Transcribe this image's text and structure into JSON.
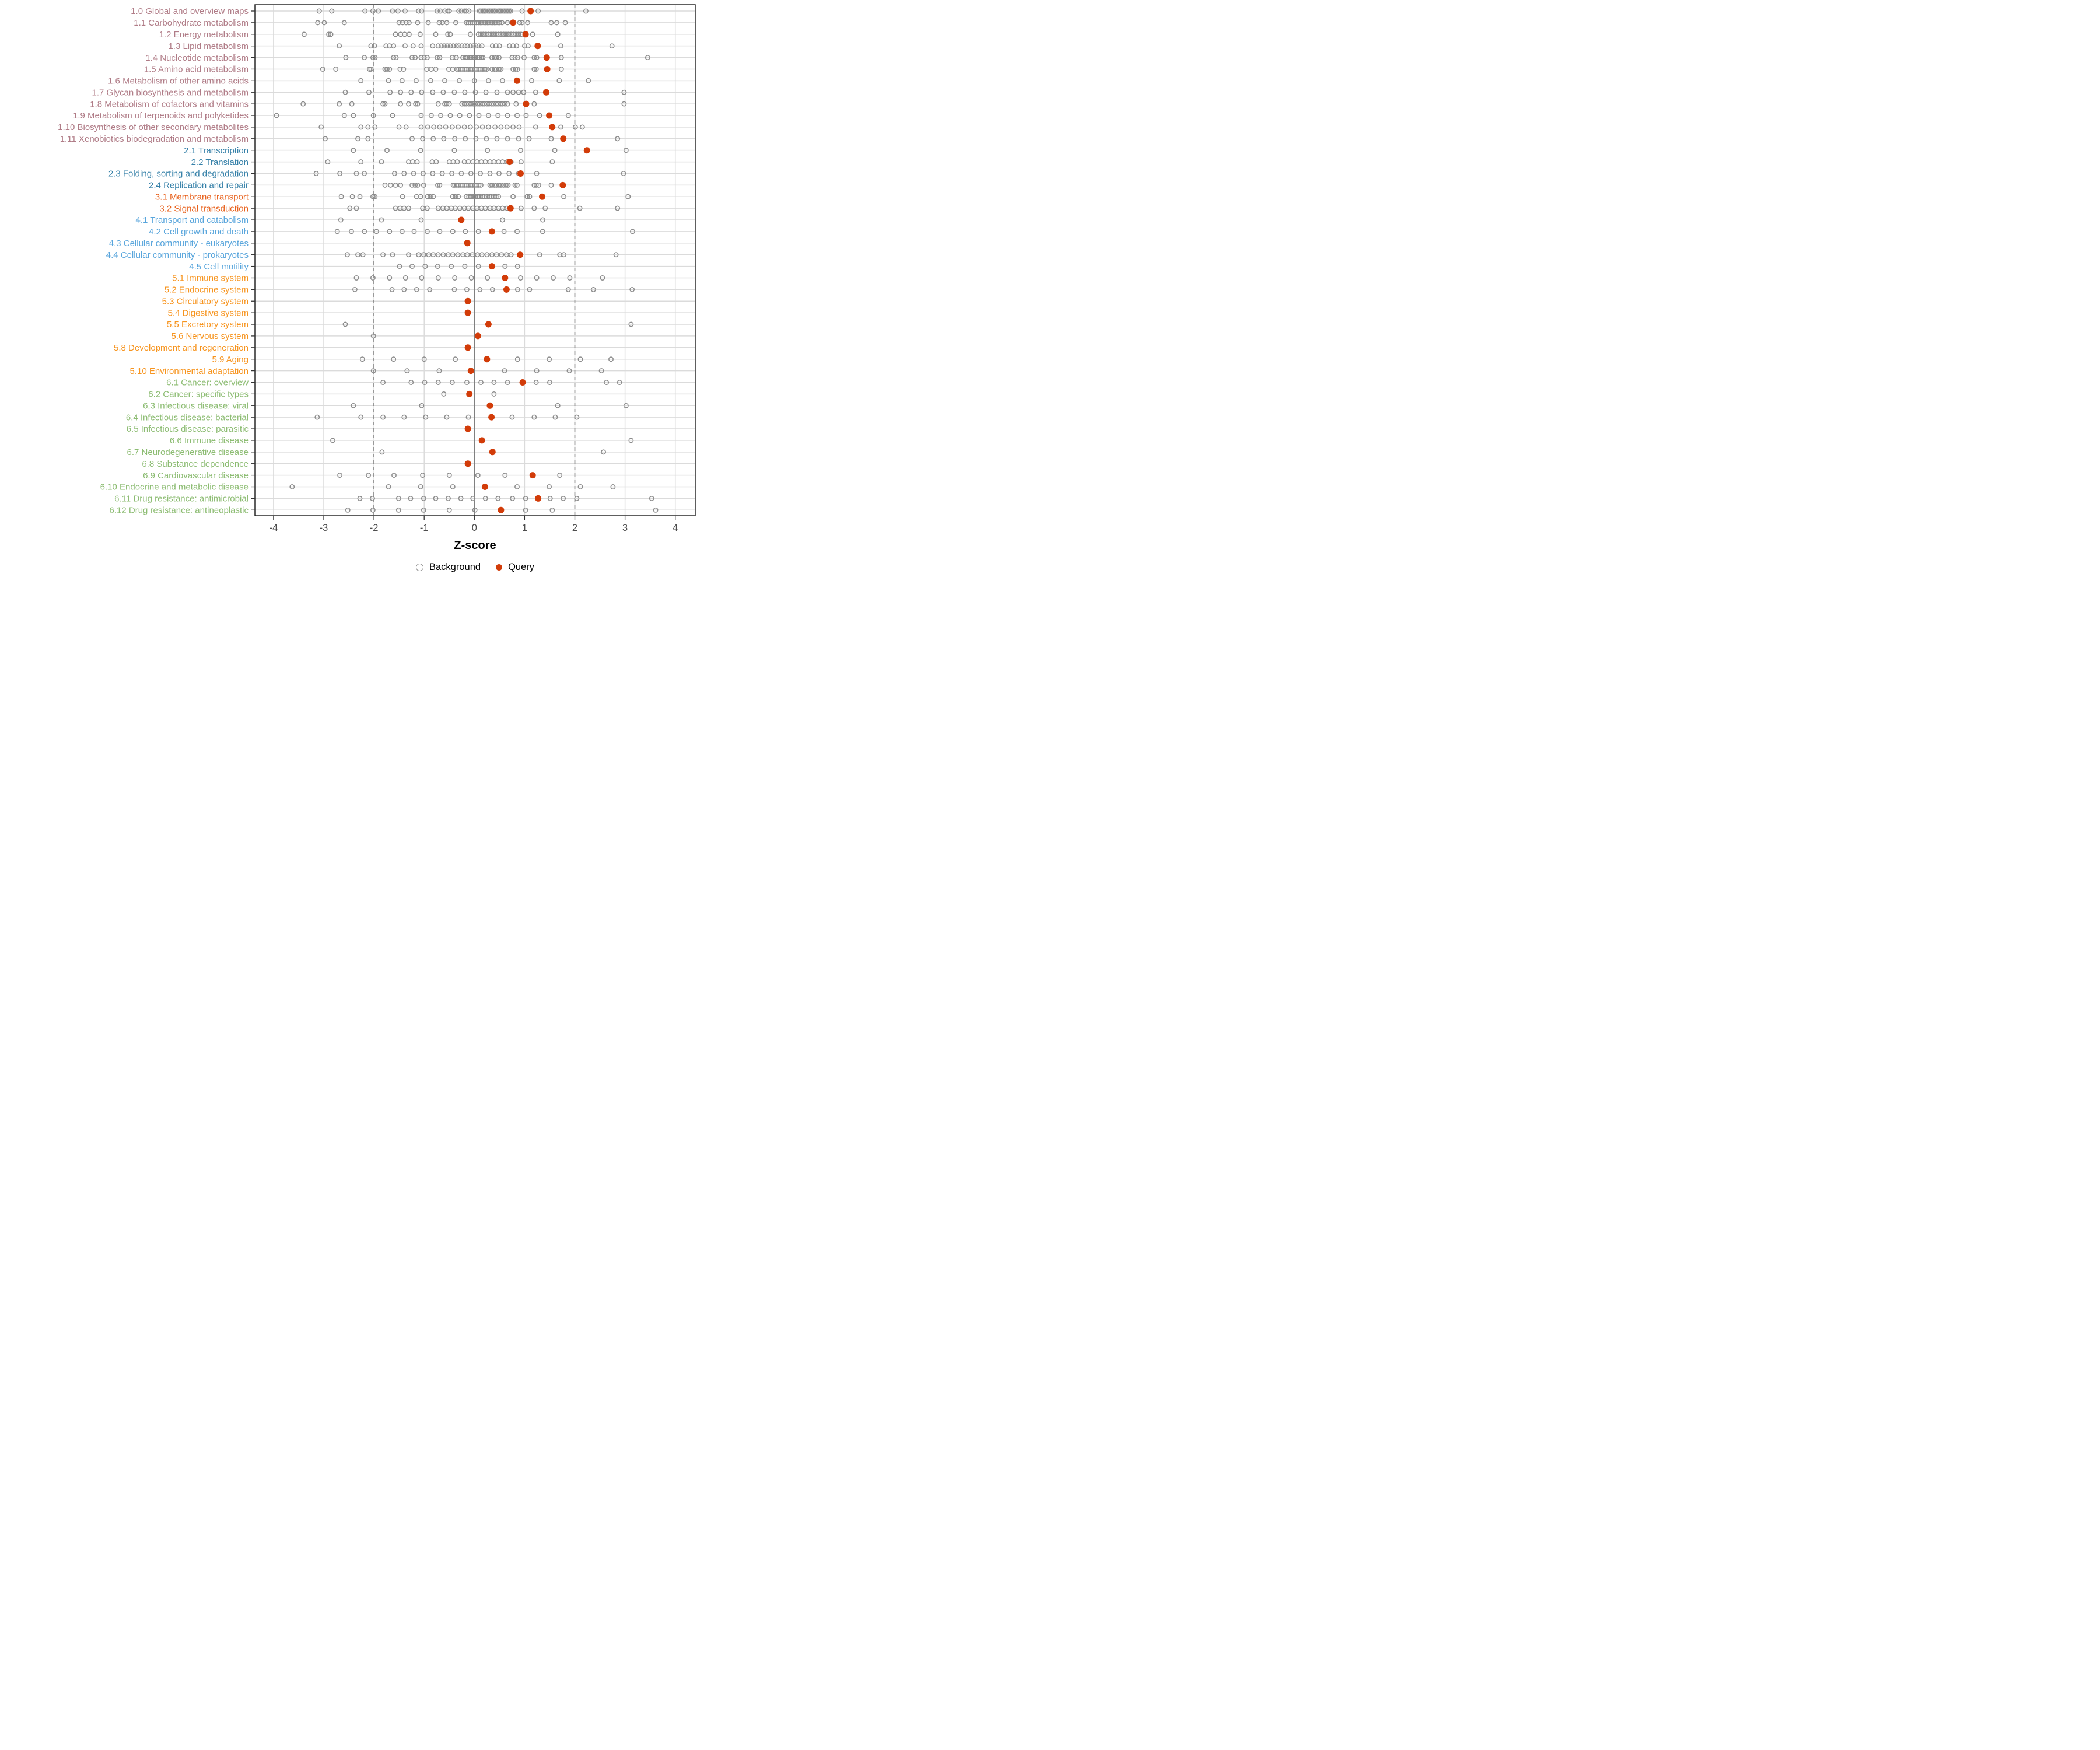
{
  "figure": {
    "kind": "strip-plot of KEGG pathway category Z-scores",
    "background_color": "#FFFFFF"
  },
  "style": {
    "query_color": "#D23C09",
    "background_stroke": "#8C8C8C",
    "grid_color": "#DBDBDB",
    "zero_line_color": "#808080",
    "dashed_line_color": "#737373",
    "panel_border_color": "#1A1A1A",
    "tick_color": "#333333",
    "tick_label_color": "#4D4D4D",
    "palette": {
      "g1": "#B07C87",
      "g2": "#3580A8",
      "g3": "#E8611C",
      "g4": "#58A5DC",
      "g5": "#F7941E",
      "g6": "#8CBC72"
    }
  },
  "chart_data": {
    "type": "scatter",
    "title": "",
    "xlabel": "Z-score",
    "ylabel": "",
    "xlim": [
      -4.37,
      4.4
    ],
    "x_ticks": [
      -4,
      -3,
      -2,
      -1,
      0,
      1,
      2,
      3,
      4
    ],
    "grid": true,
    "reference_lines": {
      "solid_at": 0,
      "dashed_at": [
        -2,
        2
      ]
    },
    "legend_position": "bottom",
    "legend": [
      {
        "label": "Background",
        "marker": "open-circle"
      },
      {
        "label": "Query",
        "marker": "filled-circle"
      }
    ],
    "series_note": "each row: gray open circles = Background distribution, red filled circle = Query z-score",
    "rows": [
      {
        "label": "1.0 Global and overview maps",
        "group": "g1",
        "query": 1.12,
        "background": [
          -3.09,
          -2.84,
          -2.18,
          -2.02,
          -1.91,
          -1.63,
          -1.52,
          -1.38,
          -1.11,
          -1.05,
          -0.74,
          -0.68,
          -0.59,
          -0.53,
          -0.5,
          -0.31,
          -0.26,
          -0.2,
          -0.16,
          -0.11,
          0.1,
          0.13,
          0.17,
          0.2,
          0.23,
          0.27,
          0.3,
          0.33,
          0.37,
          0.4,
          0.43,
          0.47,
          0.5,
          0.53,
          0.57,
          0.6,
          0.63,
          0.66,
          0.69,
          0.72,
          0.95,
          1.27,
          2.22
        ]
      },
      {
        "label": "1.1 Carbohydrate metabolism",
        "group": "g1",
        "query": 0.77,
        "background": [
          -3.12,
          -2.99,
          -2.59,
          -1.5,
          -1.43,
          -1.36,
          -1.3,
          -1.13,
          -0.92,
          -0.7,
          -0.64,
          -0.55,
          -0.37,
          -0.16,
          -0.12,
          -0.08,
          -0.04,
          0.0,
          0.04,
          0.08,
          0.12,
          0.15,
          0.19,
          0.22,
          0.26,
          0.29,
          0.33,
          0.36,
          0.4,
          0.43,
          0.47,
          0.5,
          0.55,
          0.66,
          0.9,
          0.95,
          1.06,
          1.53,
          1.64,
          1.81
        ]
      },
      {
        "label": "1.2 Energy metabolism",
        "group": "g1",
        "query": 1.02,
        "background": [
          -3.39,
          -2.9,
          -2.86,
          -1.57,
          -1.47,
          -1.39,
          -1.3,
          -1.08,
          -0.77,
          -0.53,
          -0.48,
          -0.08,
          0.08,
          0.13,
          0.18,
          0.23,
          0.28,
          0.33,
          0.38,
          0.43,
          0.48,
          0.53,
          0.58,
          0.63,
          0.68,
          0.73,
          0.78,
          0.83,
          0.88,
          0.93,
          1.16,
          1.66
        ]
      },
      {
        "label": "1.3 Lipid metabolism",
        "group": "g1",
        "query": 1.26,
        "background": [
          -2.69,
          -2.06,
          -1.99,
          -1.76,
          -1.69,
          -1.61,
          -1.38,
          -1.22,
          -1.06,
          -0.83,
          -0.72,
          -0.66,
          -0.6,
          -0.54,
          -0.48,
          -0.42,
          -0.36,
          -0.31,
          -0.25,
          -0.19,
          -0.14,
          -0.08,
          -0.02,
          0.03,
          0.09,
          0.15,
          0.36,
          0.43,
          0.5,
          0.7,
          0.77,
          0.84,
          1.0,
          1.07,
          1.72,
          2.74
        ]
      },
      {
        "label": "1.4 Nucleotide metabolism",
        "group": "g1",
        "query": 1.44,
        "background": [
          -2.56,
          -2.19,
          -2.02,
          -1.98,
          -1.61,
          -1.56,
          -1.24,
          -1.18,
          -1.06,
          -1.0,
          -0.94,
          -0.74,
          -0.69,
          -0.44,
          -0.36,
          -0.23,
          -0.18,
          -0.14,
          -0.1,
          -0.07,
          -0.03,
          0.0,
          0.03,
          0.07,
          0.1,
          0.14,
          0.17,
          0.35,
          0.4,
          0.44,
          0.49,
          0.75,
          0.81,
          0.86,
          0.99,
          1.19,
          1.24,
          1.73,
          3.45
        ]
      },
      {
        "label": "1.5 Amino acid metabolism",
        "group": "g1",
        "query": 1.45,
        "background": [
          -3.02,
          -2.76,
          -2.09,
          -2.06,
          -1.78,
          -1.74,
          -1.69,
          -1.48,
          -1.41,
          -0.95,
          -0.86,
          -0.77,
          -0.51,
          -0.43,
          -0.35,
          -0.31,
          -0.27,
          -0.23,
          -0.19,
          -0.15,
          -0.11,
          -0.07,
          -0.03,
          0.01,
          0.05,
          0.09,
          0.13,
          0.17,
          0.21,
          0.25,
          0.35,
          0.4,
          0.44,
          0.49,
          0.53,
          0.77,
          0.82,
          0.86,
          1.19,
          1.23,
          1.73
        ]
      },
      {
        "label": "1.6 Metabolism of other amino acids",
        "group": "g1",
        "query": 0.85,
        "background": [
          -2.26,
          -1.71,
          -1.44,
          -1.16,
          -0.87,
          -0.59,
          -0.3,
          0.0,
          0.28,
          0.56,
          1.14,
          1.69,
          2.27
        ]
      },
      {
        "label": "1.7 Glycan biosynthesis and metabolism",
        "group": "g1",
        "query": 1.43,
        "background": [
          -2.57,
          -2.1,
          -1.68,
          -1.47,
          -1.26,
          -1.05,
          -0.83,
          -0.62,
          -0.4,
          -0.19,
          0.02,
          0.23,
          0.45,
          0.66,
          0.77,
          0.88,
          0.98,
          1.22,
          2.98
        ]
      },
      {
        "label": "1.8 Metabolism of cofactors and vitamins",
        "group": "g1",
        "query": 1.03,
        "background": [
          -3.41,
          -2.69,
          -2.44,
          -1.82,
          -1.78,
          -1.47,
          -1.31,
          -1.17,
          -1.13,
          -0.72,
          -0.59,
          -0.55,
          -0.5,
          -0.25,
          -0.2,
          -0.16,
          -0.11,
          -0.07,
          -0.02,
          0.02,
          0.07,
          0.11,
          0.16,
          0.2,
          0.25,
          0.29,
          0.34,
          0.38,
          0.43,
          0.47,
          0.52,
          0.56,
          0.61,
          0.66,
          0.83,
          1.19,
          2.98
        ]
      },
      {
        "label": "1.9 Metabolism of terpenoids and polyketides",
        "group": "g1",
        "query": 1.49,
        "background": [
          -3.94,
          -2.59,
          -2.41,
          -2.01,
          -1.63,
          -1.06,
          -0.86,
          -0.67,
          -0.48,
          -0.29,
          -0.1,
          0.09,
          0.28,
          0.47,
          0.66,
          0.85,
          1.03,
          1.3,
          1.87
        ]
      },
      {
        "label": "1.10 Biosynthesis of other secondary metabolites",
        "group": "g1",
        "query": 1.55,
        "background": [
          -3.05,
          -2.26,
          -2.12,
          -1.98,
          -1.5,
          -1.36,
          -1.06,
          -0.93,
          -0.81,
          -0.69,
          -0.57,
          -0.44,
          -0.32,
          -0.2,
          -0.08,
          0.04,
          0.16,
          0.28,
          0.41,
          0.53,
          0.65,
          0.77,
          0.89,
          1.22,
          1.72,
          2.01,
          2.15
        ]
      },
      {
        "label": "1.11 Xenobiotics biodegradation and metabolism",
        "group": "g1",
        "query": 1.77,
        "background": [
          -2.97,
          -2.32,
          -2.12,
          -1.24,
          -1.03,
          -0.82,
          -0.61,
          -0.39,
          -0.18,
          0.03,
          0.24,
          0.45,
          0.66,
          0.88,
          1.09,
          1.53,
          2.85
        ]
      },
      {
        "label": "2.1 Transcription",
        "group": "g2",
        "query": 2.24,
        "background": [
          -2.41,
          -1.74,
          -1.07,
          -0.4,
          0.26,
          0.92,
          1.6,
          3.02
        ]
      },
      {
        "label": "2.2 Translation",
        "group": "g2",
        "query": 0.7,
        "background": [
          -2.92,
          -2.26,
          -1.85,
          -1.31,
          -1.23,
          -1.14,
          -0.84,
          -0.76,
          -0.5,
          -0.42,
          -0.34,
          -0.2,
          -0.12,
          -0.03,
          0.05,
          0.14,
          0.22,
          0.31,
          0.39,
          0.48,
          0.56,
          0.65,
          0.73,
          0.93,
          1.55
        ]
      },
      {
        "label": "2.3 Folding, sorting and degradation",
        "group": "g2",
        "query": 0.92,
        "background": [
          -3.15,
          -2.68,
          -2.35,
          -2.19,
          -1.59,
          -1.4,
          -1.21,
          -1.02,
          -0.83,
          -0.64,
          -0.45,
          -0.26,
          -0.07,
          0.12,
          0.31,
          0.49,
          0.69,
          0.88,
          1.24,
          2.97
        ]
      },
      {
        "label": "2.4 Replication and repair",
        "group": "g2",
        "query": 1.76,
        "background": [
          -1.78,
          -1.67,
          -1.57,
          -1.47,
          -1.24,
          -1.18,
          -1.13,
          -1.01,
          -0.73,
          -0.69,
          -0.42,
          -0.39,
          -0.35,
          -0.31,
          -0.27,
          -0.23,
          -0.19,
          -0.15,
          -0.11,
          -0.07,
          -0.03,
          0.01,
          0.05,
          0.09,
          0.13,
          0.31,
          0.35,
          0.4,
          0.44,
          0.49,
          0.53,
          0.58,
          0.63,
          0.67,
          0.81,
          0.85,
          1.19,
          1.23,
          1.28,
          1.53
        ]
      },
      {
        "label": "3.1 Membrane transport",
        "group": "g3",
        "query": 1.35,
        "background": [
          -2.65,
          -2.43,
          -2.28,
          -2.02,
          -1.98,
          -1.43,
          -1.15,
          -1.07,
          -0.93,
          -0.88,
          -0.82,
          -0.43,
          -0.38,
          -0.32,
          -0.16,
          -0.11,
          -0.07,
          -0.02,
          0.02,
          0.07,
          0.11,
          0.16,
          0.2,
          0.25,
          0.3,
          0.34,
          0.39,
          0.43,
          0.48,
          0.77,
          1.05,
          1.1,
          1.78,
          3.06
        ]
      },
      {
        "label": "3.2 Signal transduction",
        "group": "g3",
        "query": 0.72,
        "background": [
          -2.48,
          -2.35,
          -1.57,
          -1.48,
          -1.4,
          -1.31,
          -1.03,
          -0.94,
          -0.72,
          -0.63,
          -0.55,
          -0.46,
          -0.38,
          -0.29,
          -0.2,
          -0.12,
          -0.03,
          0.05,
          0.14,
          0.22,
          0.31,
          0.39,
          0.48,
          0.56,
          0.65,
          0.93,
          1.19,
          1.41,
          2.1,
          2.85
        ]
      },
      {
        "label": "4.1 Transport and catabolism",
        "group": "g4",
        "query": -0.26,
        "background": [
          -2.66,
          -1.85,
          -1.06,
          0.56,
          1.36
        ]
      },
      {
        "label": "4.2 Cell growth and death",
        "group": "g4",
        "query": 0.35,
        "background": [
          -2.73,
          -2.45,
          -2.19,
          -1.95,
          -1.69,
          -1.44,
          -1.2,
          -0.94,
          -0.69,
          -0.43,
          -0.18,
          0.08,
          0.59,
          0.85,
          1.36,
          3.15
        ]
      },
      {
        "label": "4.3 Cellular community - eukaryotes",
        "group": "g4",
        "query": -0.14,
        "background": []
      },
      {
        "label": "4.4 Cellular community - prokaryotes",
        "group": "g4",
        "query": 0.91,
        "background": [
          -2.53,
          -2.32,
          -2.22,
          -1.82,
          -1.63,
          -1.31,
          -1.11,
          -1.01,
          -0.91,
          -0.82,
          -0.72,
          -0.62,
          -0.52,
          -0.43,
          -0.33,
          -0.23,
          -0.14,
          -0.04,
          0.06,
          0.15,
          0.25,
          0.35,
          0.44,
          0.54,
          0.64,
          0.73,
          1.3,
          1.7,
          1.78,
          2.82
        ]
      },
      {
        "label": "4.5 Cell motility",
        "group": "g4",
        "query": 0.35,
        "background": [
          -1.49,
          -1.24,
          -0.98,
          -0.73,
          -0.46,
          -0.19,
          0.08,
          0.61,
          0.86
        ]
      },
      {
        "label": "5.1 Immune system",
        "group": "g5",
        "query": 0.61,
        "background": [
          -2.35,
          -2.02,
          -1.69,
          -1.37,
          -1.05,
          -0.72,
          -0.39,
          -0.06,
          0.26,
          0.92,
          1.24,
          1.57,
          1.9,
          2.55
        ]
      },
      {
        "label": "5.2 Endocrine system",
        "group": "g5",
        "query": 0.64,
        "background": [
          -2.38,
          -1.64,
          -1.4,
          -1.15,
          -0.89,
          -0.4,
          -0.15,
          0.11,
          0.36,
          0.86,
          1.1,
          1.87,
          2.37,
          3.14
        ]
      },
      {
        "label": "5.3 Circulatory system",
        "group": "g5",
        "query": -0.13,
        "background": []
      },
      {
        "label": "5.4 Digestive system",
        "group": "g5",
        "query": -0.13,
        "background": []
      },
      {
        "label": "5.5 Excretory system",
        "group": "g5",
        "query": 0.28,
        "background": [
          -2.57,
          3.12
        ]
      },
      {
        "label": "5.6 Nervous system",
        "group": "g5",
        "query": 0.07,
        "background": [
          -2.01
        ]
      },
      {
        "label": "5.8 Development and regeneration",
        "group": "g5",
        "query": -0.13,
        "background": []
      },
      {
        "label": "5.9 Aging",
        "group": "g5",
        "query": 0.25,
        "background": [
          -2.23,
          -1.61,
          -1.0,
          -0.38,
          0.86,
          1.49,
          2.11,
          2.72
        ]
      },
      {
        "label": "5.10 Environmental adaptation",
        "group": "g5",
        "query": -0.07,
        "background": [
          -2.01,
          -1.34,
          -0.7,
          0.6,
          1.24,
          1.89,
          2.53
        ]
      },
      {
        "label": "6.1 Cancer: overview",
        "group": "g6",
        "query": 0.96,
        "background": [
          -1.82,
          -1.26,
          -0.99,
          -0.72,
          -0.44,
          -0.15,
          0.13,
          0.39,
          0.66,
          1.23,
          1.5,
          2.63,
          2.89
        ]
      },
      {
        "label": "6.2 Cancer: specific types",
        "group": "g6",
        "query": -0.1,
        "background": [
          -0.61,
          0.39
        ]
      },
      {
        "label": "6.3 Infectious disease: viral",
        "group": "g6",
        "query": 0.31,
        "background": [
          -2.41,
          -1.05,
          1.66,
          3.02
        ]
      },
      {
        "label": "6.4 Infectious disease: bacterial",
        "group": "g6",
        "query": 0.34,
        "background": [
          -3.13,
          -2.26,
          -1.82,
          -1.4,
          -0.97,
          -0.55,
          -0.12,
          0.75,
          1.19,
          1.61,
          2.04
        ]
      },
      {
        "label": "6.5 Infectious disease: parasitic",
        "group": "g6",
        "query": -0.13,
        "background": []
      },
      {
        "label": "6.6 Immune disease",
        "group": "g6",
        "query": 0.15,
        "background": [
          -2.82,
          3.12
        ]
      },
      {
        "label": "6.7 Neurodegenerative disease",
        "group": "g6",
        "query": 0.36,
        "background": [
          -1.84,
          2.57
        ]
      },
      {
        "label": "6.8 Substance dependence",
        "group": "g6",
        "query": -0.13,
        "background": []
      },
      {
        "label": "6.9 Cardiovascular disease",
        "group": "g6",
        "query": 1.16,
        "background": [
          -2.68,
          -2.11,
          -1.6,
          -1.03,
          -0.5,
          0.07,
          0.61,
          1.7
        ]
      },
      {
        "label": "6.10 Endocrine and metabolic disease",
        "group": "g6",
        "query": 0.21,
        "background": [
          -3.63,
          -1.71,
          -1.07,
          -0.43,
          0.85,
          1.49,
          2.11,
          2.76
        ]
      },
      {
        "label": "6.11 Drug resistance: antimicrobial",
        "group": "g6",
        "query": 1.27,
        "background": [
          -2.28,
          -2.03,
          -1.51,
          -1.27,
          -1.01,
          -0.77,
          -0.52,
          -0.27,
          -0.03,
          0.22,
          0.47,
          0.76,
          1.02,
          1.51,
          1.77,
          2.04,
          3.53
        ]
      },
      {
        "label": "6.12 Drug resistance: antineoplastic",
        "group": "g6",
        "query": 0.53,
        "background": [
          -2.52,
          -2.02,
          -1.51,
          -1.01,
          -0.5,
          0.01,
          1.02,
          1.55,
          3.61
        ]
      }
    ]
  }
}
